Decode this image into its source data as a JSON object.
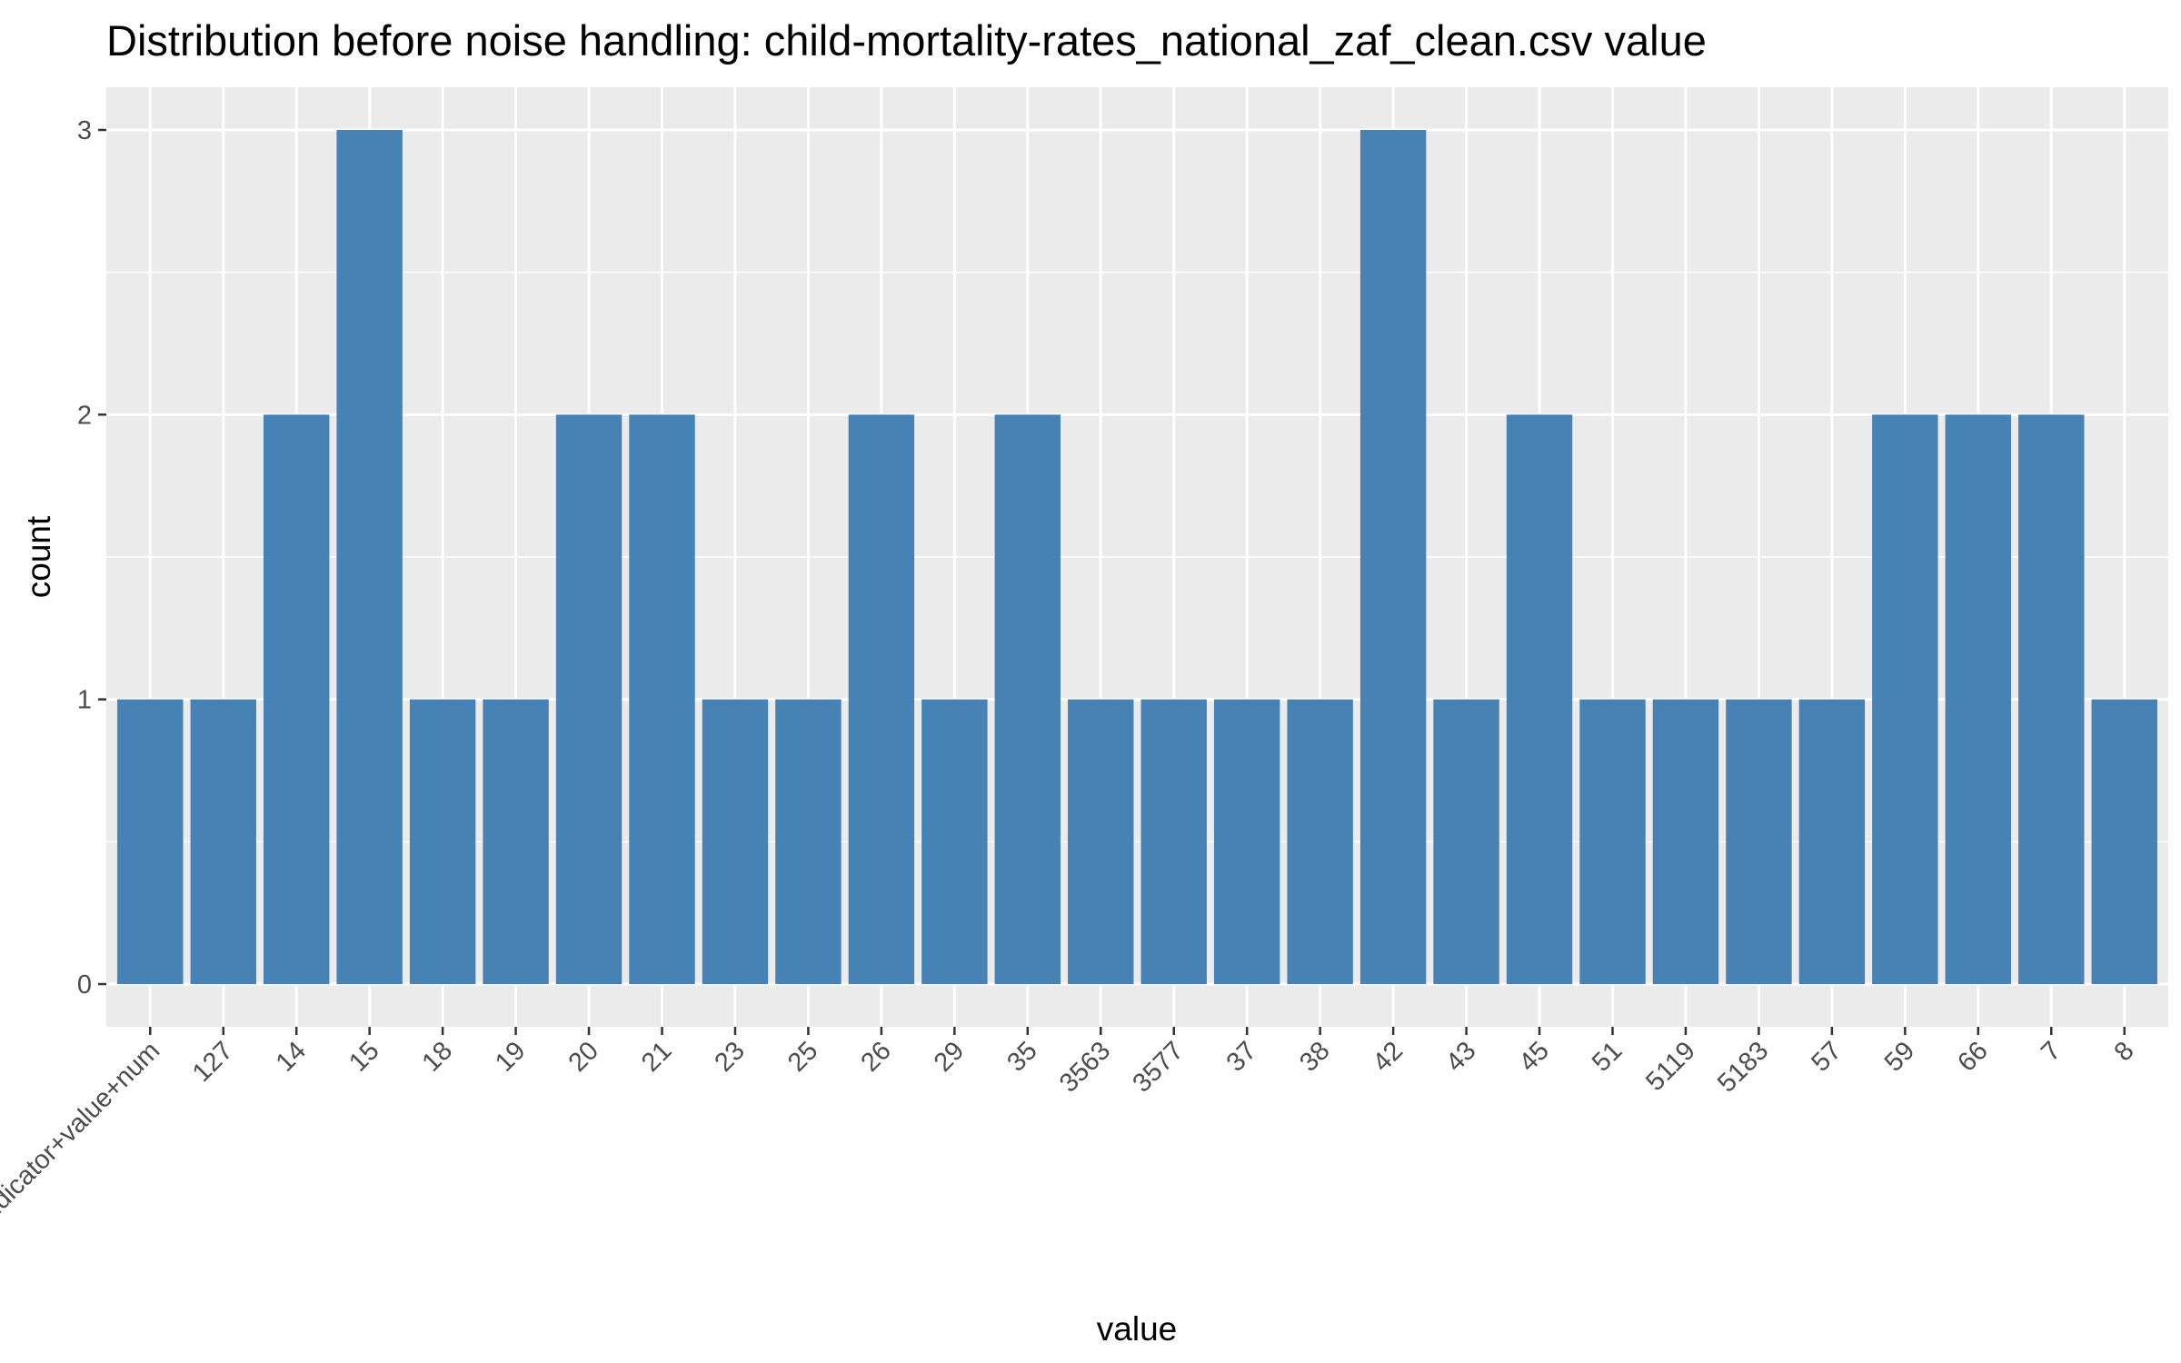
{
  "chart_data": {
    "type": "bar",
    "title": "Distribution before noise handling: child-mortality-rates_national_zaf_clean.csv value",
    "xlabel": "value",
    "ylabel": "count",
    "categories": [
      "#indicator+value+num",
      "127",
      "14",
      "15",
      "18",
      "19",
      "20",
      "21",
      "23",
      "25",
      "26",
      "29",
      "35",
      "3563",
      "3577",
      "37",
      "38",
      "42",
      "43",
      "45",
      "51",
      "5119",
      "5183",
      "57",
      "59",
      "66",
      "7",
      "8"
    ],
    "values": [
      1,
      1,
      2,
      3,
      1,
      1,
      2,
      2,
      1,
      1,
      2,
      1,
      2,
      1,
      1,
      1,
      1,
      3,
      1,
      2,
      1,
      1,
      1,
      1,
      2,
      2,
      2,
      1
    ],
    "yticks": [
      0,
      1,
      2,
      3
    ],
    "ylim": [
      -0.15,
      3.15
    ],
    "grid": true,
    "legend": "none",
    "colors": {
      "bar": "#4682b4",
      "panel": "#ebebeb",
      "grid": "#ffffff",
      "tick": "#333333",
      "tick_label": "#4d4d4d"
    }
  }
}
